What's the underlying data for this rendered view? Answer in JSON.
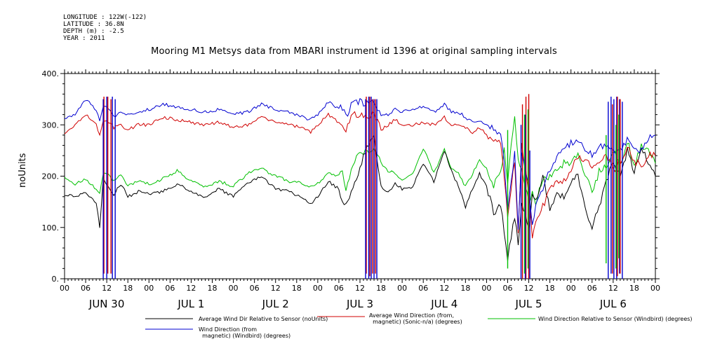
{
  "meta": {
    "longitude": "LONGITUDE : 122W(-122)",
    "latitude": "LATITUDE : 36.8N",
    "depth": "DEPTH (m) : -2.5",
    "year": "YEAR : 2011"
  },
  "chart_data": {
    "type": "line",
    "title": "Mooring M1 Metsys data from MBARI instrument id 1396 at original sampling intervals",
    "ylabel": "noUnits",
    "xlabel": "",
    "ylim": [
      0,
      400
    ],
    "yticks": [
      "0.",
      "100.",
      "200.",
      "300.",
      "400."
    ],
    "xlim": [
      0,
      168
    ],
    "xticks_hours": [
      "00",
      "06",
      "12",
      "18",
      "00",
      "06",
      "12",
      "18",
      "00",
      "06",
      "12",
      "18",
      "00",
      "06",
      "12",
      "18",
      "00",
      "06",
      "12",
      "18",
      "00",
      "06",
      "12",
      "18",
      "00",
      "06",
      "12",
      "18",
      "00"
    ],
    "day_labels": [
      "JUN 30",
      "JUL  1",
      "JUL  2",
      "JUL  3",
      "JUL  4",
      "JUL  5",
      "JUL  6"
    ],
    "x_unit": "hours since Jun 30 00:00",
    "series": [
      {
        "name": "Average Wind Dir Relative to Sensor (noUnits)",
        "color": "#000000",
        "x": [
          0,
          3,
          6,
          9,
          10,
          11,
          12,
          14,
          16,
          18,
          21,
          24,
          28,
          32,
          36,
          40,
          44,
          48,
          52,
          56,
          60,
          64,
          68,
          70,
          72,
          75,
          78,
          79,
          80,
          82,
          84,
          86,
          88,
          90,
          92,
          94,
          96,
          99,
          102,
          105,
          108,
          110,
          112,
          114,
          116,
          118,
          120,
          122,
          124,
          125,
          126,
          128,
          129,
          130,
          132,
          133,
          134,
          136,
          138,
          140,
          142,
          144,
          146,
          148,
          150,
          152,
          154,
          156,
          158,
          160,
          162,
          164,
          166,
          168
        ],
        "y": [
          165,
          160,
          168,
          150,
          100,
          195,
          185,
          165,
          185,
          160,
          170,
          165,
          170,
          185,
          170,
          160,
          175,
          160,
          185,
          200,
          175,
          170,
          155,
          145,
          160,
          190,
          175,
          150,
          140,
          175,
          215,
          260,
          280,
          180,
          170,
          185,
          175,
          180,
          225,
          190,
          250,
          210,
          180,
          140,
          175,
          205,
          180,
          130,
          140,
          95,
          40,
          120,
          70,
          150,
          100,
          160,
          150,
          200,
          135,
          165,
          160,
          190,
          200,
          140,
          100,
          140,
          190,
          230,
          195,
          250,
          210,
          250,
          230,
          200
        ]
      },
      {
        "name": "Average Wind Direction (from, magnetic) (Sonic-n/a) (degrees)",
        "color": "#d00000",
        "x": [
          0,
          3,
          6,
          9,
          10,
          11,
          12,
          14,
          16,
          18,
          21,
          24,
          28,
          32,
          36,
          40,
          44,
          48,
          52,
          56,
          60,
          64,
          68,
          70,
          72,
          75,
          78,
          79,
          80,
          82,
          84,
          86,
          88,
          90,
          92,
          94,
          96,
          99,
          102,
          105,
          108,
          110,
          112,
          114,
          116,
          118,
          120,
          122,
          124,
          125,
          126,
          128,
          129,
          130,
          132,
          133,
          134,
          136,
          138,
          140,
          142,
          144,
          146,
          148,
          150,
          152,
          154,
          156,
          158,
          160,
          162,
          164,
          166,
          168
        ],
        "y": [
          285,
          300,
          320,
          300,
          280,
          310,
          310,
          295,
          300,
          290,
          300,
          300,
          315,
          310,
          305,
          300,
          305,
          295,
          300,
          315,
          305,
          300,
          295,
          285,
          300,
          320,
          305,
          300,
          290,
          320,
          320,
          310,
          325,
          290,
          300,
          310,
          300,
          300,
          305,
          300,
          315,
          300,
          300,
          295,
          285,
          295,
          280,
          270,
          265,
          200,
          120,
          230,
          90,
          260,
          170,
          80,
          110,
          140,
          175,
          185,
          190,
          215,
          235,
          235,
          215,
          230,
          245,
          210,
          230,
          255,
          230,
          220,
          240,
          240
        ]
      },
      {
        "name": "Wind Direction Relative to Sensor (Windbird) (degrees)",
        "color": "#00c000",
        "x": [
          0,
          3,
          6,
          9,
          10,
          11,
          12,
          14,
          16,
          18,
          21,
          24,
          28,
          32,
          36,
          40,
          44,
          48,
          52,
          56,
          60,
          64,
          68,
          70,
          72,
          75,
          78,
          79,
          80,
          82,
          84,
          86,
          88,
          90,
          92,
          94,
          96,
          99,
          102,
          105,
          108,
          110,
          112,
          114,
          116,
          118,
          120,
          122,
          124,
          125,
          126,
          128,
          129,
          130,
          132,
          133,
          134,
          136,
          138,
          140,
          142,
          144,
          146,
          148,
          150,
          152,
          154,
          156,
          158,
          160,
          162,
          164,
          166,
          168
        ],
        "y": [
          195,
          185,
          195,
          175,
          165,
          205,
          205,
          190,
          205,
          180,
          190,
          185,
          195,
          210,
          190,
          180,
          190,
          180,
          205,
          215,
          200,
          190,
          185,
          180,
          185,
          205,
          200,
          215,
          175,
          225,
          245,
          250,
          255,
          225,
          210,
          205,
          195,
          205,
          255,
          205,
          255,
          215,
          205,
          180,
          205,
          230,
          215,
          180,
          210,
          250,
          190,
          320,
          230,
          210,
          150,
          165,
          150,
          195,
          200,
          215,
          225,
          225,
          240,
          205,
          165,
          210,
          220,
          250,
          220,
          270,
          220,
          260,
          250,
          225
        ]
      },
      {
        "name": "Wind Direction (from, magnetic) (Windbird) (degrees)",
        "color": "#0000d0",
        "x": [
          0,
          3,
          6,
          9,
          10,
          11,
          12,
          14,
          16,
          18,
          21,
          24,
          28,
          32,
          36,
          40,
          44,
          48,
          52,
          56,
          60,
          64,
          68,
          70,
          72,
          75,
          78,
          79,
          80,
          82,
          84,
          86,
          88,
          90,
          92,
          94,
          96,
          99,
          102,
          105,
          108,
          110,
          112,
          114,
          116,
          118,
          120,
          122,
          124,
          125,
          126,
          128,
          129,
          130,
          132,
          133,
          134,
          136,
          138,
          140,
          142,
          144,
          146,
          148,
          150,
          152,
          154,
          156,
          158,
          160,
          162,
          164,
          166,
          168
        ],
        "y": [
          310,
          320,
          350,
          330,
          305,
          335,
          335,
          315,
          325,
          320,
          325,
          330,
          340,
          335,
          330,
          325,
          330,
          320,
          325,
          340,
          330,
          325,
          315,
          310,
          320,
          345,
          330,
          335,
          315,
          345,
          345,
          340,
          345,
          320,
          320,
          330,
          325,
          330,
          335,
          325,
          340,
          325,
          325,
          315,
          305,
          310,
          300,
          290,
          275,
          230,
          130,
          250,
          100,
          245,
          180,
          110,
          140,
          175,
          210,
          240,
          255,
          265,
          270,
          255,
          240,
          255,
          260,
          245,
          250,
          270,
          250,
          250,
          275,
          280
        ]
      }
    ],
    "spikes": [
      {
        "color": "#d00000",
        "x": [
          11.2,
          12.3,
          13.2
        ],
        "low": [
          10,
          10,
          10
        ],
        "high": [
          355,
          355,
          350
        ]
      },
      {
        "color": "#0000d0",
        "x": [
          11.0,
          12.0,
          13.6,
          14.4
        ],
        "low": [
          0,
          0,
          0,
          0
        ],
        "high": [
          350,
          355,
          355,
          350
        ]
      },
      {
        "color": "#d00000",
        "x": [
          85.8,
          86.8,
          87.6,
          88.4
        ],
        "low": [
          10,
          5,
          10,
          10
        ],
        "high": [
          355,
          355,
          350,
          350
        ]
      },
      {
        "color": "#0000d0",
        "x": [
          85.6,
          86.5,
          87.2,
          88.0,
          88.8
        ],
        "low": [
          0,
          0,
          0,
          0,
          0
        ],
        "high": [
          350,
          355,
          355,
          350,
          350
        ]
      },
      {
        "color": "#d00000",
        "x": [
          130.2,
          131.2,
          132.0
        ],
        "low": [
          0,
          0,
          0
        ],
        "high": [
          340,
          355,
          360
        ]
      },
      {
        "color": "#0000d0",
        "x": [
          129.8,
          131.0,
          132.3
        ],
        "low": [
          0,
          0,
          0
        ],
        "high": [
          300,
          320,
          250
        ]
      },
      {
        "color": "#00c000",
        "x": [
          126.0,
          130.8,
          131.8
        ],
        "low": [
          20,
          10,
          20
        ],
        "high": [
          290,
          320,
          330
        ]
      },
      {
        "color": "#0000d0",
        "x": [
          154.6,
          155.4,
          156.2,
          157.0,
          157.8,
          158.6
        ],
        "low": [
          0,
          10,
          0,
          0,
          10,
          0
        ],
        "high": [
          345,
          355,
          350,
          355,
          350,
          345
        ]
      },
      {
        "color": "#d00000",
        "x": [
          155.8,
          157.2,
          158.0
        ],
        "low": [
          10,
          5,
          10
        ],
        "high": [
          340,
          355,
          350
        ]
      },
      {
        "color": "#00c000",
        "x": [
          154.0,
          156.8,
          157.6
        ],
        "low": [
          30,
          20,
          40
        ],
        "high": [
          280,
          300,
          320
        ]
      }
    ]
  },
  "legend": [
    {
      "label": "Average Wind Dir Relative to Sensor (noUnits)",
      "color": "#000000"
    },
    {
      "label": "Average Wind Direction (from,\n  magnetic) (Sonic-n/a) (degrees)",
      "color": "#d00000"
    },
    {
      "label": "Wind Direction Relative to Sensor (Windbird) (degrees)",
      "color": "#00c000"
    },
    {
      "label": "Wind Direction (from\n  magnetic) (Windbird) (degrees)",
      "color": "#0000d0"
    }
  ]
}
